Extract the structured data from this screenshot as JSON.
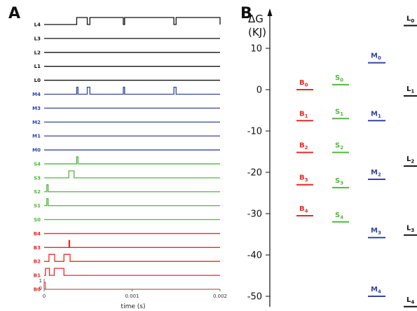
{
  "figure": {
    "panel_a_label": "A",
    "panel_b_label": "B"
  },
  "colors": {
    "L": "#111111",
    "M": "#3346a0",
    "S": "#4fb83c",
    "B": "#e42b24"
  },
  "chart_data": [
    {
      "type": "line",
      "panel": "A",
      "xlabel": "time (s)",
      "xlim": [
        0,
        0.002
      ],
      "xticks": [
        0,
        0.001,
        0.002
      ],
      "xtick_labels": [
        "0",
        "0.001",
        "0.002"
      ],
      "y_axis_marks": [
        "1",
        "0"
      ],
      "baseline_trace": "B0",
      "series": [
        {
          "name": "L4",
          "group": "L",
          "pulses": [
            [
              0.00037,
              0.00049
            ],
            [
              0.00052,
              0.0009
            ],
            [
              0.000915,
              0.001475
            ],
            [
              0.0015,
              0.002
            ]
          ]
        },
        {
          "name": "L3",
          "group": "L",
          "pulses": []
        },
        {
          "name": "L2",
          "group": "L",
          "pulses": []
        },
        {
          "name": "L1",
          "group": "L",
          "pulses": []
        },
        {
          "name": "L0",
          "group": "L",
          "pulses": []
        },
        {
          "name": "M4",
          "group": "M",
          "pulses": [
            [
              0.00037,
              0.000385
            ],
            [
              0.00049,
              0.00052
            ],
            [
              0.0009,
              0.000915
            ],
            [
              0.001475,
              0.0015
            ]
          ]
        },
        {
          "name": "M3",
          "group": "M",
          "pulses": []
        },
        {
          "name": "M2",
          "group": "M",
          "pulses": []
        },
        {
          "name": "M1",
          "group": "M",
          "pulses": []
        },
        {
          "name": "M0",
          "group": "M",
          "pulses": []
        },
        {
          "name": "S4",
          "group": "S",
          "pulses": [
            [
              0.00037,
              0.000385
            ]
          ]
        },
        {
          "name": "S3",
          "group": "S",
          "pulses": [
            [
              0.00028,
              0.00034
            ]
          ]
        },
        {
          "name": "S2",
          "group": "S",
          "pulses": [
            [
              3e-05,
              4.5e-05
            ]
          ]
        },
        {
          "name": "S1",
          "group": "S",
          "pulses": [
            [
              3e-05,
              4.5e-05
            ]
          ]
        },
        {
          "name": "S0",
          "group": "S",
          "pulses": []
        },
        {
          "name": "B4",
          "group": "B",
          "pulses": []
        },
        {
          "name": "B3",
          "group": "B",
          "pulses": [
            [
              0.000282,
              0.00029
            ]
          ]
        },
        {
          "name": "B2",
          "group": "B",
          "pulses": [
            [
              5.5e-05,
              0.00012
            ],
            [
              0.000225,
              0.000295
            ]
          ]
        },
        {
          "name": "B1",
          "group": "B",
          "pulses": [
            [
              1.5e-05,
              6e-05
            ],
            [
              0.000115,
              0.000225
            ]
          ]
        },
        {
          "name": "B0",
          "group": "B",
          "pulses": [
            [
              0,
              1.5e-05
            ]
          ]
        }
      ]
    },
    {
      "type": "scatter",
      "panel": "B",
      "ylabel": "ΔG",
      "ylabel_unit": "(KJ)",
      "ylim": [
        -52,
        18
      ],
      "yticks": [
        10,
        0,
        -10,
        -20,
        -30,
        -40,
        -50
      ],
      "ytick_labels": [
        "10",
        "0",
        "-10",
        "-20",
        "-30",
        "-40",
        "-50"
      ],
      "grid": false,
      "columns": [
        {
          "group": "B",
          "levels": [
            {
              "base": "B",
              "sub": "0",
              "value": 0
            },
            {
              "base": "B",
              "sub": "1",
              "value": -7.5
            },
            {
              "base": "B",
              "sub": "2",
              "value": -15.2
            },
            {
              "base": "B",
              "sub": "3",
              "value": -23
            },
            {
              "base": "B",
              "sub": "4",
              "value": -30.5
            }
          ]
        },
        {
          "group": "S",
          "levels": [
            {
              "base": "S",
              "sub": "0",
              "value": 1.2
            },
            {
              "base": "S",
              "sub": "1",
              "value": -7
            },
            {
              "base": "S",
              "sub": "2",
              "value": -15.2
            },
            {
              "base": "S",
              "sub": "3",
              "value": -23.7
            },
            {
              "base": "S",
              "sub": "4",
              "value": -32
            }
          ]
        },
        {
          "group": "M",
          "levels": [
            {
              "base": "M",
              "sub": "0",
              "value": 6.5
            },
            {
              "base": "M",
              "sub": "1",
              "value": -7.5
            },
            {
              "base": "M",
              "sub": "2",
              "value": -21.7
            },
            {
              "base": "M",
              "sub": "3",
              "value": -35.8
            },
            {
              "base": "M",
              "sub": "4",
              "value": -50
            }
          ]
        },
        {
          "group": "L",
          "levels": [
            {
              "base": "L",
              "sub": "0",
              "value": 15.5
            },
            {
              "base": "L",
              "sub": "1",
              "value": -1.5
            },
            {
              "base": "L",
              "sub": "2",
              "value": -18.5
            },
            {
              "base": "L",
              "sub": "3",
              "value": -35.2
            },
            {
              "base": "L",
              "sub": "4",
              "value": -52.5
            }
          ]
        }
      ]
    }
  ]
}
